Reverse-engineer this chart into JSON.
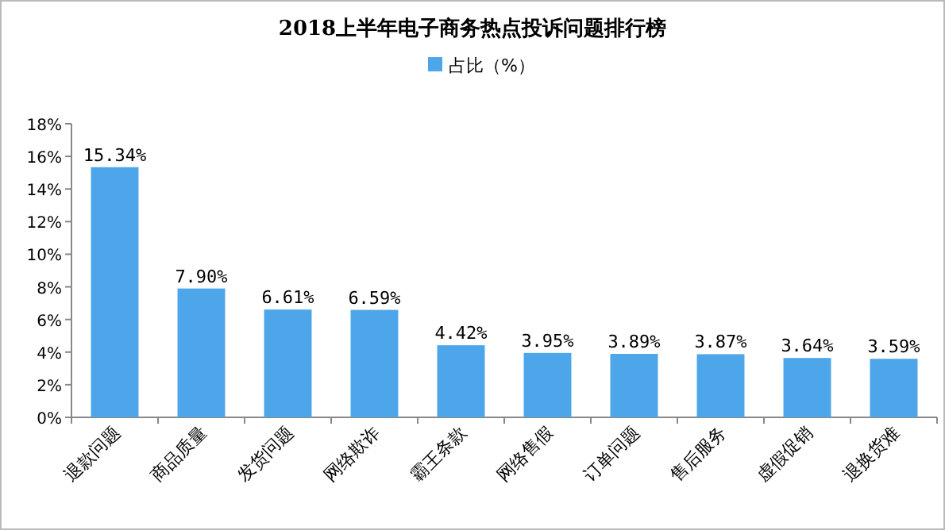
{
  "chart_data": {
    "type": "bar",
    "title": "2018上半年电子商务热点投诉问题排行榜",
    "categories": [
      "退款问题",
      "商品质量",
      "发货问题",
      "网络欺诈",
      "霸王条款",
      "网络售假",
      "订单问题",
      "售后服务",
      "虚假促销",
      "退换货难"
    ],
    "series": [
      {
        "name": "占比（%）",
        "color": "#4ea6ea",
        "values": [
          15.34,
          7.9,
          6.61,
          6.59,
          4.42,
          3.95,
          3.89,
          3.87,
          3.64,
          3.59
        ],
        "value_labels": [
          "15.34%",
          "7.90%",
          "6.61%",
          "6.59%",
          "4.42%",
          "3.95%",
          "3.89%",
          "3.87%",
          "3.64%",
          "3.59%"
        ]
      }
    ],
    "ylim": [
      0,
      18
    ],
    "yticks": [
      {
        "value": 0,
        "label": "0%"
      },
      {
        "value": 2,
        "label": "2%"
      },
      {
        "value": 4,
        "label": "4%"
      },
      {
        "value": 6,
        "label": "6%"
      },
      {
        "value": 8,
        "label": "8%"
      },
      {
        "value": 10,
        "label": "10%"
      },
      {
        "value": 12,
        "label": "12%"
      },
      {
        "value": 14,
        "label": "14%"
      },
      {
        "value": 16,
        "label": "16%"
      },
      {
        "value": 18,
        "label": "18%"
      }
    ],
    "legend": "top"
  }
}
